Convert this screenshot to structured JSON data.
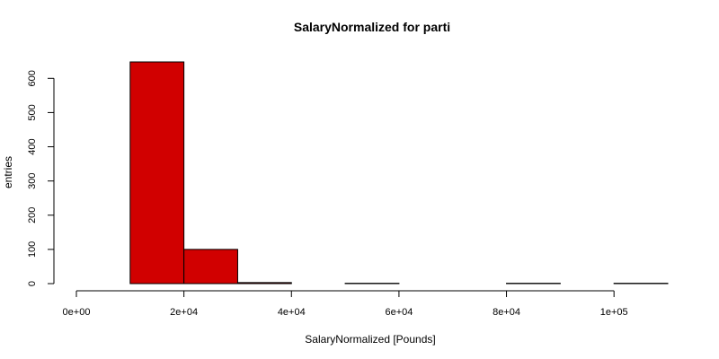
{
  "chart_data": {
    "type": "bar",
    "title": "SalaryNormalized for parti",
    "xlabel": "SalaryNormalized [Pounds]",
    "ylabel": "entries",
    "bar_color": "#D10000",
    "bins": [
      {
        "x0": 0,
        "x1": 10000,
        "count": 0
      },
      {
        "x0": 10000,
        "x1": 20000,
        "count": 648
      },
      {
        "x0": 20000,
        "x1": 30000,
        "count": 100
      },
      {
        "x0": 30000,
        "x1": 40000,
        "count": 3
      },
      {
        "x0": 40000,
        "x1": 50000,
        "count": 0
      },
      {
        "x0": 50000,
        "x1": 60000,
        "count": 1
      },
      {
        "x0": 60000,
        "x1": 70000,
        "count": 0
      },
      {
        "x0": 70000,
        "x1": 80000,
        "count": 0
      },
      {
        "x0": 80000,
        "x1": 90000,
        "count": 1
      },
      {
        "x0": 90000,
        "x1": 100000,
        "count": 0
      },
      {
        "x0": 100000,
        "x1": 110000,
        "count": 1
      }
    ],
    "xlim": [
      0,
      110000
    ],
    "ylim": [
      0,
      648
    ],
    "x_ticks": [
      {
        "value": 0,
        "label": "0e+00"
      },
      {
        "value": 20000,
        "label": "2e+04"
      },
      {
        "value": 40000,
        "label": "4e+04"
      },
      {
        "value": 60000,
        "label": "6e+04"
      },
      {
        "value": 80000,
        "label": "8e+04"
      },
      {
        "value": 100000,
        "label": "1e+05"
      }
    ],
    "y_ticks": [
      {
        "value": 0,
        "label": "0"
      },
      {
        "value": 100,
        "label": "100"
      },
      {
        "value": 200,
        "label": "200"
      },
      {
        "value": 300,
        "label": "300"
      },
      {
        "value": 400,
        "label": "400"
      },
      {
        "value": 500,
        "label": "500"
      },
      {
        "value": 600,
        "label": "600"
      }
    ],
    "grid": false,
    "legend": "none"
  }
}
